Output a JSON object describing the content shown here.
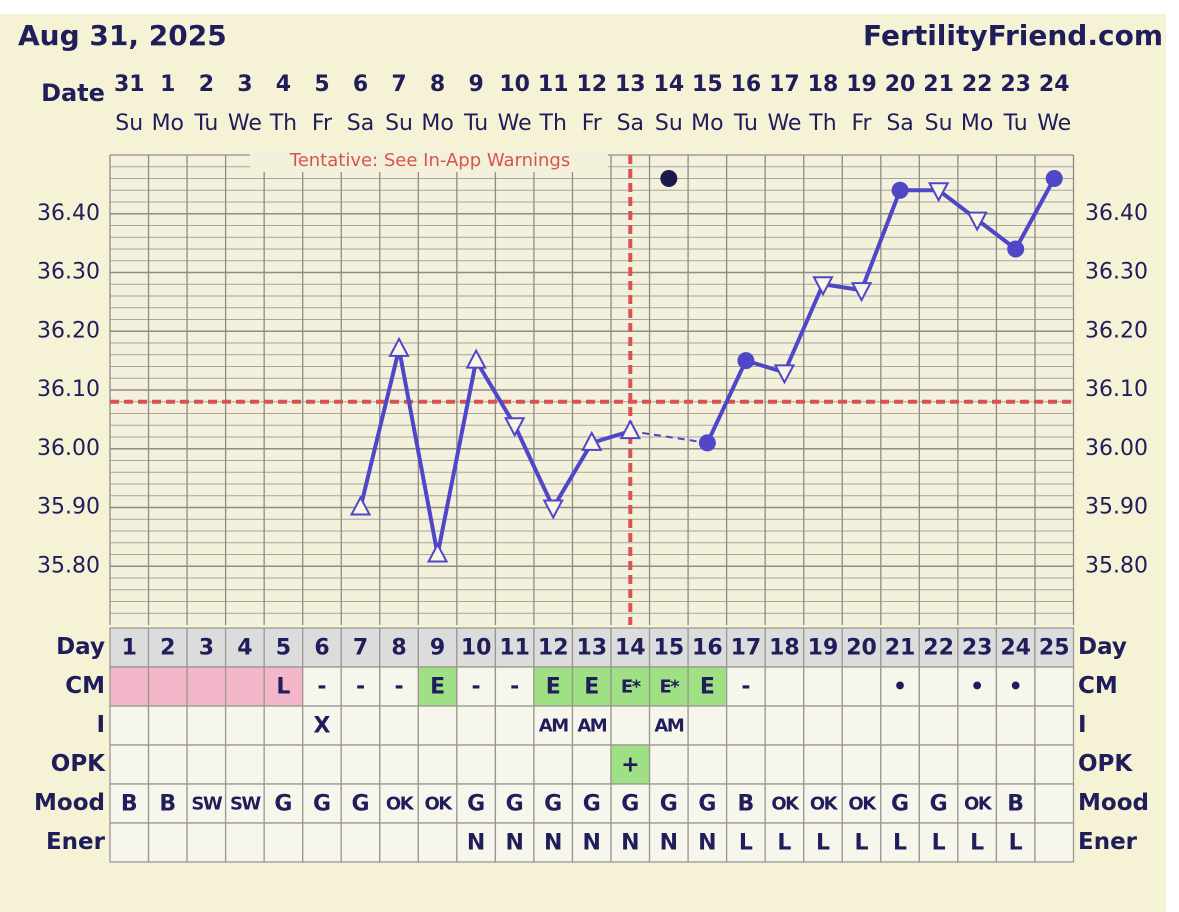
{
  "chart_data": {
    "type": "line",
    "title": "Aug 31, 2025",
    "site": "FertilityFriend.com",
    "date_label": "Date",
    "categories": [
      "31",
      "1",
      "2",
      "3",
      "4",
      "5",
      "6",
      "7",
      "8",
      "9",
      "10",
      "11",
      "12",
      "13",
      "14",
      "15",
      "16",
      "17",
      "18",
      "19",
      "20",
      "21",
      "22",
      "23",
      "24"
    ],
    "weekdays": [
      "Su",
      "Mo",
      "Tu",
      "We",
      "Th",
      "Fr",
      "Sa",
      "Su",
      "Mo",
      "Tu",
      "We",
      "Th",
      "Fr",
      "Sa",
      "Su",
      "Mo",
      "Tu",
      "We",
      "Th",
      "Fr",
      "Sa",
      "Su",
      "Mo",
      "Tu",
      "We"
    ],
    "ylim": [
      35.7,
      36.5
    ],
    "yticks": [
      {
        "value": 35.8,
        "label": "35.80"
      },
      {
        "value": 35.9,
        "label": "35.90"
      },
      {
        "value": 36.0,
        "label": "36.00"
      },
      {
        "value": 36.1,
        "label": "36.10"
      },
      {
        "value": 36.2,
        "label": "36.20"
      },
      {
        "value": 36.3,
        "label": "36.30"
      },
      {
        "value": 36.4,
        "label": "36.40"
      }
    ],
    "grid": true,
    "series": [
      {
        "color": "#5046c8",
        "connect_gaps": "dashed",
        "values": [
          null,
          null,
          null,
          null,
          null,
          null,
          35.9,
          36.17,
          35.82,
          36.15,
          36.04,
          35.9,
          36.01,
          36.03,
          null,
          36.01,
          36.15,
          36.13,
          36.28,
          36.27,
          36.44,
          36.44,
          36.39,
          36.34,
          36.46
        ],
        "markers": [
          null,
          null,
          null,
          null,
          null,
          null,
          "up",
          "up",
          "up",
          "up",
          "down",
          "down",
          "up",
          "up",
          null,
          "dot",
          "dot",
          "down",
          "down",
          "down",
          "dot",
          "down",
          "down",
          "dot",
          "dot"
        ]
      },
      {
        "color": "#1c1a4a",
        "values": [
          null,
          null,
          null,
          null,
          null,
          null,
          null,
          null,
          null,
          null,
          null,
          null,
          null,
          null,
          36.46,
          null,
          null,
          null,
          null,
          null,
          null,
          null,
          null,
          null,
          null
        ],
        "markers": [
          null,
          null,
          null,
          null,
          null,
          null,
          null,
          null,
          null,
          null,
          null,
          null,
          null,
          null,
          "dot",
          null,
          null,
          null,
          null,
          null,
          null,
          null,
          null,
          null,
          null
        ]
      }
    ],
    "coverline": 36.08,
    "ovulation_day": "13",
    "marker_color": "#d9534f",
    "annotation": "Tentative: See In-App Warnings"
  },
  "table": {
    "rows": [
      {
        "label": "Day",
        "fill": "#dcdcdc",
        "cells": [
          1,
          2,
          3,
          4,
          5,
          6,
          7,
          8,
          9,
          10,
          11,
          12,
          13,
          14,
          15,
          16,
          17,
          18,
          19,
          20,
          21,
          22,
          23,
          24,
          25
        ]
      },
      {
        "label": "CM",
        "cells": [
          null,
          null,
          null,
          null,
          "L",
          "-",
          "-",
          "-",
          "E",
          "-",
          "-",
          "E",
          "E",
          "E*",
          "E*",
          "E",
          "-",
          null,
          null,
          null,
          "•",
          null,
          "•",
          "•",
          null
        ],
        "colors": [
          "#f4b6c9",
          "#f4b6c9",
          "#f4b6c9",
          "#f4b6c9",
          "#f4b6c9",
          null,
          null,
          null,
          "#9fe084",
          null,
          null,
          "#9fe084",
          "#9fe084",
          "#9fe084",
          "#9fe084",
          "#9fe084",
          null,
          null,
          null,
          null,
          null,
          null,
          null,
          null,
          null
        ]
      },
      {
        "label": "I",
        "cells": [
          null,
          null,
          null,
          null,
          null,
          "X",
          null,
          null,
          null,
          null,
          null,
          "AM",
          "AM",
          null,
          "AM",
          null,
          null,
          null,
          null,
          null,
          null,
          null,
          null,
          null,
          null
        ]
      },
      {
        "label": "OPK",
        "cells": [
          null,
          null,
          null,
          null,
          null,
          null,
          null,
          null,
          null,
          null,
          null,
          null,
          null,
          "+",
          null,
          null,
          null,
          null,
          null,
          null,
          null,
          null,
          null,
          null,
          null
        ],
        "colors": [
          null,
          null,
          null,
          null,
          null,
          null,
          null,
          null,
          null,
          null,
          null,
          null,
          null,
          "#9fe084",
          null,
          null,
          null,
          null,
          null,
          null,
          null,
          null,
          null,
          null,
          null
        ]
      },
      {
        "label": "Mood",
        "cells": [
          "B",
          "B",
          "SW",
          "SW",
          "G",
          "G",
          "G",
          "OK",
          "OK",
          "G",
          "G",
          "G",
          "G",
          "G",
          "G",
          "G",
          "B",
          "OK",
          "OK",
          "OK",
          "G",
          "G",
          "OK",
          "B",
          null
        ]
      },
      {
        "label": "Ener",
        "cells": [
          null,
          null,
          null,
          null,
          null,
          null,
          null,
          null,
          null,
          "N",
          "N",
          "N",
          "N",
          "N",
          "N",
          "N",
          "L",
          "L",
          "L",
          "L",
          "L",
          "L",
          "L",
          "L",
          null
        ]
      }
    ]
  }
}
